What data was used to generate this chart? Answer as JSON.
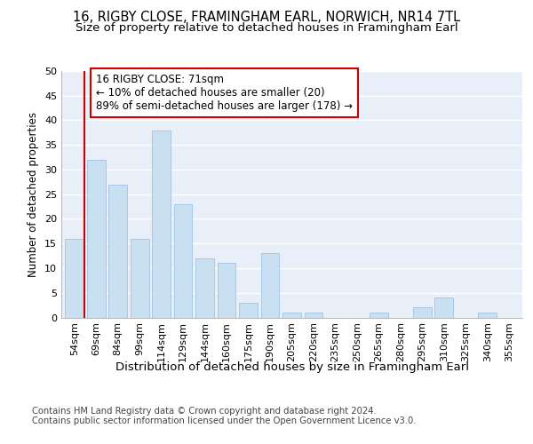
{
  "title1": "16, RIGBY CLOSE, FRAMINGHAM EARL, NORWICH, NR14 7TL",
  "title2": "Size of property relative to detached houses in Framingham Earl",
  "xlabel": "Distribution of detached houses by size in Framingham Earl",
  "ylabel": "Number of detached properties",
  "bar_color": "#c9dff2",
  "bar_edge_color": "#a8c8e8",
  "categories": [
    "54sqm",
    "69sqm",
    "84sqm",
    "99sqm",
    "114sqm",
    "129sqm",
    "144sqm",
    "160sqm",
    "175sqm",
    "190sqm",
    "205sqm",
    "220sqm",
    "235sqm",
    "250sqm",
    "265sqm",
    "280sqm",
    "295sqm",
    "310sqm",
    "325sqm",
    "340sqm",
    "355sqm"
  ],
  "values": [
    16,
    32,
    27,
    16,
    38,
    23,
    12,
    11,
    3,
    13,
    1,
    1,
    0,
    0,
    1,
    0,
    2,
    4,
    0,
    1,
    0
  ],
  "ylim": [
    0,
    50
  ],
  "yticks": [
    0,
    5,
    10,
    15,
    20,
    25,
    30,
    35,
    40,
    45,
    50
  ],
  "annotation_line1": "16 RIGBY CLOSE: 71sqm",
  "annotation_line2": "← 10% of detached houses are smaller (20)",
  "annotation_line3": "89% of semi-detached houses are larger (178) →",
  "vline_color": "#cc0000",
  "footer1": "Contains HM Land Registry data © Crown copyright and database right 2024.",
  "footer2": "Contains public sector information licensed under the Open Government Licence v3.0.",
  "background_color": "#e8eff8",
  "grid_color": "#ffffff",
  "title1_fontsize": 10.5,
  "title2_fontsize": 9.5,
  "xlabel_fontsize": 9.5,
  "ylabel_fontsize": 8.5,
  "tick_fontsize": 8,
  "annotation_fontsize": 8.5,
  "footer_fontsize": 7.2
}
